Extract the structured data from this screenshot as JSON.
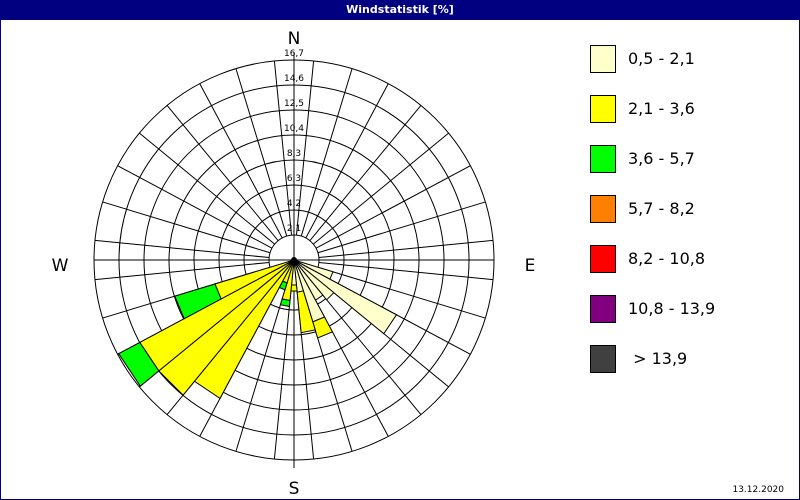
{
  "window": {
    "title": "Windstatistik [%]",
    "date": "13.12.2020"
  },
  "chart_data": {
    "type": "windrose",
    "title": "Windstatistik [%]",
    "unit": "%",
    "compass_labels": {
      "n": "N",
      "e": "E",
      "s": "S",
      "w": "W"
    },
    "radial_ticks": [
      "2,1",
      "4,2",
      "6,3",
      "8,3",
      "10,4",
      "12,5",
      "14,6",
      "16,7"
    ],
    "radial_max": 16.7,
    "sector_count": 32,
    "classes": [
      {
        "label": "0,5 - 2,1",
        "color": "#FFFFCC"
      },
      {
        "label": "2,1 - 3,6",
        "color": "#FFFF00"
      },
      {
        "label": "3,6 - 5,7",
        "color": "#00FF00"
      },
      {
        "label": "5,7 - 8,2",
        "color": "#FF8000"
      },
      {
        "label": "8,2 - 10,8",
        "color": "#FF0000"
      },
      {
        "label": "10,8 - 13,9",
        "color": "#800080"
      },
      {
        "label": " > 13,9",
        "color": "#404040"
      }
    ],
    "sectors": [
      {
        "direction": 112.5,
        "cumulative": [
          3.4
        ]
      },
      {
        "direction": 123.75,
        "cumulative": [
          9.7
        ]
      },
      {
        "direction": 135,
        "cumulative": [
          4.3
        ]
      },
      {
        "direction": 146.25,
        "cumulative": [
          3.8
        ]
      },
      {
        "direction": 157.5,
        "cumulative": [
          5.4,
          6.8
        ]
      },
      {
        "direction": 168.75,
        "cumulative": [
          2.7,
          6.1
        ]
      },
      {
        "direction": 180,
        "cumulative": [
          2.1,
          2.6
        ]
      },
      {
        "direction": 191.25,
        "cumulative": [
          0,
          3.4,
          3.9
        ]
      },
      {
        "direction": 202.5,
        "cumulative": [
          0,
          2.0,
          2.6
        ]
      },
      {
        "direction": 213.75,
        "cumulative": [
          0,
          13.1
        ]
      },
      {
        "direction": 225,
        "cumulative": [
          0,
          14.6
        ]
      },
      {
        "direction": 236.25,
        "cumulative": [
          0,
          14.6,
          16.6
        ]
      },
      {
        "direction": 247.5,
        "cumulative": [
          0,
          6.9,
          10.4
        ]
      }
    ]
  }
}
